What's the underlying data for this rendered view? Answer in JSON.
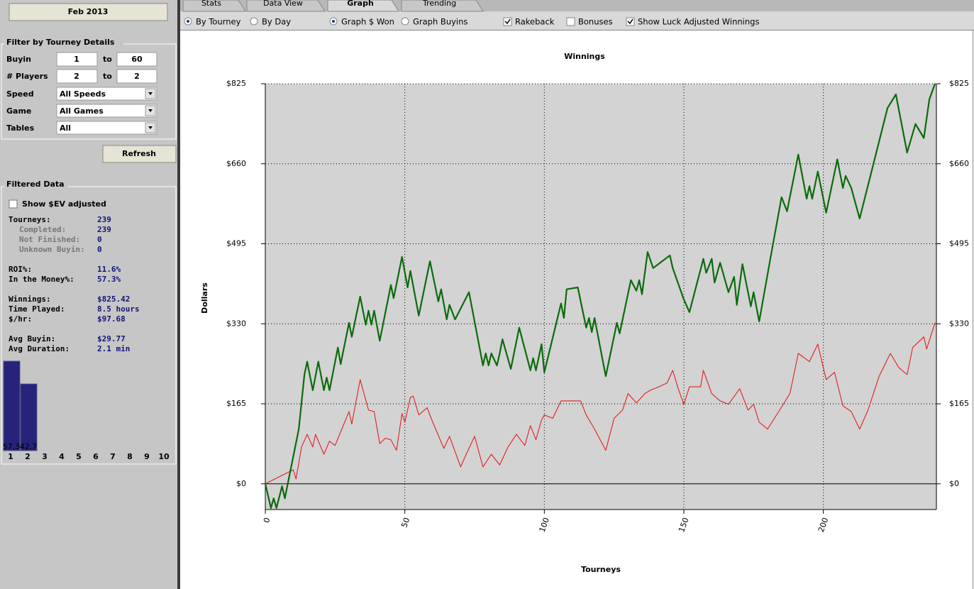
{
  "tabs": [
    "Stats",
    "Data View",
    "Graph",
    "Trending"
  ],
  "options": [
    {
      "label": "By Tourney",
      "kind": "radio",
      "checked": true
    },
    {
      "label": "By Day",
      "kind": "radio",
      "checked": false
    },
    {
      "label": "Graph $ Won",
      "kind": "radio",
      "checked": true
    },
    {
      "label": "Graph Buyins",
      "kind": "radio",
      "checked": false
    },
    {
      "label": "Rakeback",
      "kind": "checkbox",
      "checked": true
    },
    {
      "label": "Bonuses",
      "kind": "checkbox",
      "checked": false
    },
    {
      "label": "Show Luck Adjusted Winnings",
      "kind": "checkbox",
      "checked": true
    }
  ],
  "sidebar": {
    "period_button": "Feb 2013",
    "filter_title": "Filter by Tourney Details",
    "buyin": {
      "label": "Buyin",
      "from": "1",
      "to_label": "to",
      "to": "60"
    },
    "players": {
      "label": "# Players",
      "from": "2",
      "to_label": "to",
      "to": "2"
    },
    "speed": {
      "label": "Speed",
      "value": "All Speeds"
    },
    "game": {
      "label": "Game",
      "value": "All Games"
    },
    "tables": {
      "label": "Tables",
      "value": "All"
    },
    "refresh": "Refresh",
    "filtered_title": "Filtered Data",
    "ev_checkbox": "Show $EV adjusted",
    "stats": {
      "tourneys": {
        "label": "Tourneys:",
        "value": "239"
      },
      "completed": {
        "label": "Completed:",
        "value": "239"
      },
      "not_finished": {
        "label": "Not Finished:",
        "value": "0"
      },
      "unknown_buyin": {
        "label": "Unknown Buyin:",
        "value": "0"
      },
      "roi": {
        "label": "ROI%:",
        "value": "11.6%"
      },
      "itm": {
        "label": "In the Money%:",
        "value": "57.3%"
      },
      "winnings": {
        "label": "Winnings:",
        "value": "$825.42"
      },
      "time_played": {
        "label": "Time Played:",
        "value": "8.5 hours"
      },
      "per_hour": {
        "label": "$/hr:",
        "value": "$97.68"
      },
      "avg_buyin": {
        "label": "Avg Buyin:",
        "value": "$29.77"
      },
      "avg_duration": {
        "label": "Avg Duration:",
        "value": "2.1 min"
      }
    },
    "finish_chart": {
      "type": "bar",
      "color": "#25237a",
      "categories": [
        "1",
        "2",
        "3",
        "4",
        "5",
        "6",
        "7",
        "8",
        "9",
        "10"
      ],
      "values": [
        57.3,
        42.7,
        null,
        null,
        null,
        null,
        null,
        null,
        null,
        null
      ]
    }
  },
  "chart_data": {
    "type": "line",
    "title": "Winnings",
    "x_label": "Tourneys",
    "y_label": "Dollars",
    "xlim": [
      0,
      240
    ],
    "xticks": [
      0,
      50,
      100,
      150,
      200
    ],
    "ylim": [
      -53,
      825
    ],
    "yticks": [
      {
        "value": 0,
        "label": "$0"
      },
      {
        "value": 165,
        "label": "$165"
      },
      {
        "value": 330,
        "label": "$330"
      },
      {
        "value": 495,
        "label": "$495"
      },
      {
        "value": 660,
        "label": "$660"
      },
      {
        "value": 825,
        "label": "$825"
      }
    ],
    "grid": true,
    "series": [
      {
        "color": "#0b6b0b",
        "x": [
          0,
          2,
          3,
          4,
          6,
          7,
          12,
          14,
          15,
          17,
          19,
          21,
          22,
          23,
          26,
          27,
          30,
          31,
          34,
          36,
          37,
          38,
          39,
          41,
          45,
          46,
          49,
          51,
          52,
          55,
          59,
          62,
          63,
          65,
          66,
          68,
          73,
          78,
          79,
          80,
          81,
          83,
          84,
          85,
          88,
          91,
          95,
          96,
          97,
          99,
          100,
          106,
          107,
          108,
          112,
          115,
          116,
          117,
          118,
          122,
          126,
          127,
          131,
          133,
          134,
          135,
          137,
          139,
          145,
          146,
          150,
          152,
          153,
          157,
          158,
          160,
          161,
          163,
          166,
          168,
          169,
          171,
          174,
          175,
          177,
          181,
          185,
          187,
          191,
          194,
          195,
          196,
          198,
          201,
          205,
          207,
          208,
          210,
          213,
          223,
          226,
          230,
          233,
          236,
          238,
          240
        ],
        "values": [
          0,
          -50,
          -30,
          -50,
          -5,
          -30,
          113,
          225,
          252,
          193,
          252,
          193,
          219,
          193,
          281,
          247,
          332,
          303,
          386,
          328,
          357,
          328,
          357,
          295,
          410,
          383,
          468,
          405,
          439,
          347,
          459,
          376,
          401,
          339,
          369,
          339,
          395,
          244,
          269,
          244,
          269,
          244,
          269,
          298,
          237,
          322,
          234,
          259,
          234,
          288,
          230,
          372,
          342,
          401,
          405,
          322,
          342,
          313,
          342,
          222,
          332,
          310,
          420,
          398,
          420,
          391,
          478,
          445,
          471,
          445,
          380,
          354,
          376,
          464,
          435,
          464,
          415,
          456,
          395,
          427,
          369,
          453,
          366,
          395,
          335,
          464,
          591,
          562,
          679,
          588,
          614,
          588,
          644,
          559,
          669,
          610,
          635,
          610,
          547,
          775,
          803,
          683,
          742,
          713,
          793,
          825
        ]
      },
      {
        "color": "#e02020",
        "x": [
          0,
          10,
          11,
          13,
          15,
          17,
          18,
          21,
          23,
          25,
          30,
          31,
          34,
          37,
          39,
          41,
          43,
          45,
          47,
          49,
          50,
          52,
          53,
          55,
          58,
          60,
          64,
          66,
          70,
          72,
          75,
          78,
          81,
          84,
          87,
          90,
          93,
          95,
          97,
          99,
          100,
          103,
          106,
          109,
          113,
          115,
          118,
          122,
          125,
          128,
          130,
          133,
          136,
          138,
          141,
          144,
          146,
          148,
          150,
          152,
          156,
          157,
          160,
          163,
          166,
          170,
          173,
          175,
          177,
          180,
          184,
          188,
          191,
          195,
          198,
          201,
          204,
          207,
          210,
          213,
          216,
          220,
          224,
          227,
          230,
          232,
          236,
          237,
          240
        ],
        "values": [
          0,
          29,
          10,
          76,
          102,
          76,
          102,
          61,
          88,
          79,
          149,
          123,
          215,
          152,
          149,
          83,
          94,
          91,
          69,
          145,
          127,
          178,
          181,
          142,
          157,
          127,
          73,
          98,
          35,
          61,
          98,
          35,
          61,
          39,
          76,
          102,
          79,
          120,
          91,
          132,
          142,
          135,
          171,
          171,
          171,
          142,
          113,
          69,
          135,
          152,
          186,
          167,
          186,
          193,
          200,
          208,
          234,
          196,
          164,
          200,
          200,
          234,
          186,
          171,
          164,
          196,
          152,
          164,
          127,
          113,
          149,
          186,
          269,
          252,
          288,
          215,
          230,
          161,
          149,
          113,
          152,
          222,
          269,
          240,
          225,
          281,
          303,
          278,
          332
        ]
      }
    ]
  }
}
